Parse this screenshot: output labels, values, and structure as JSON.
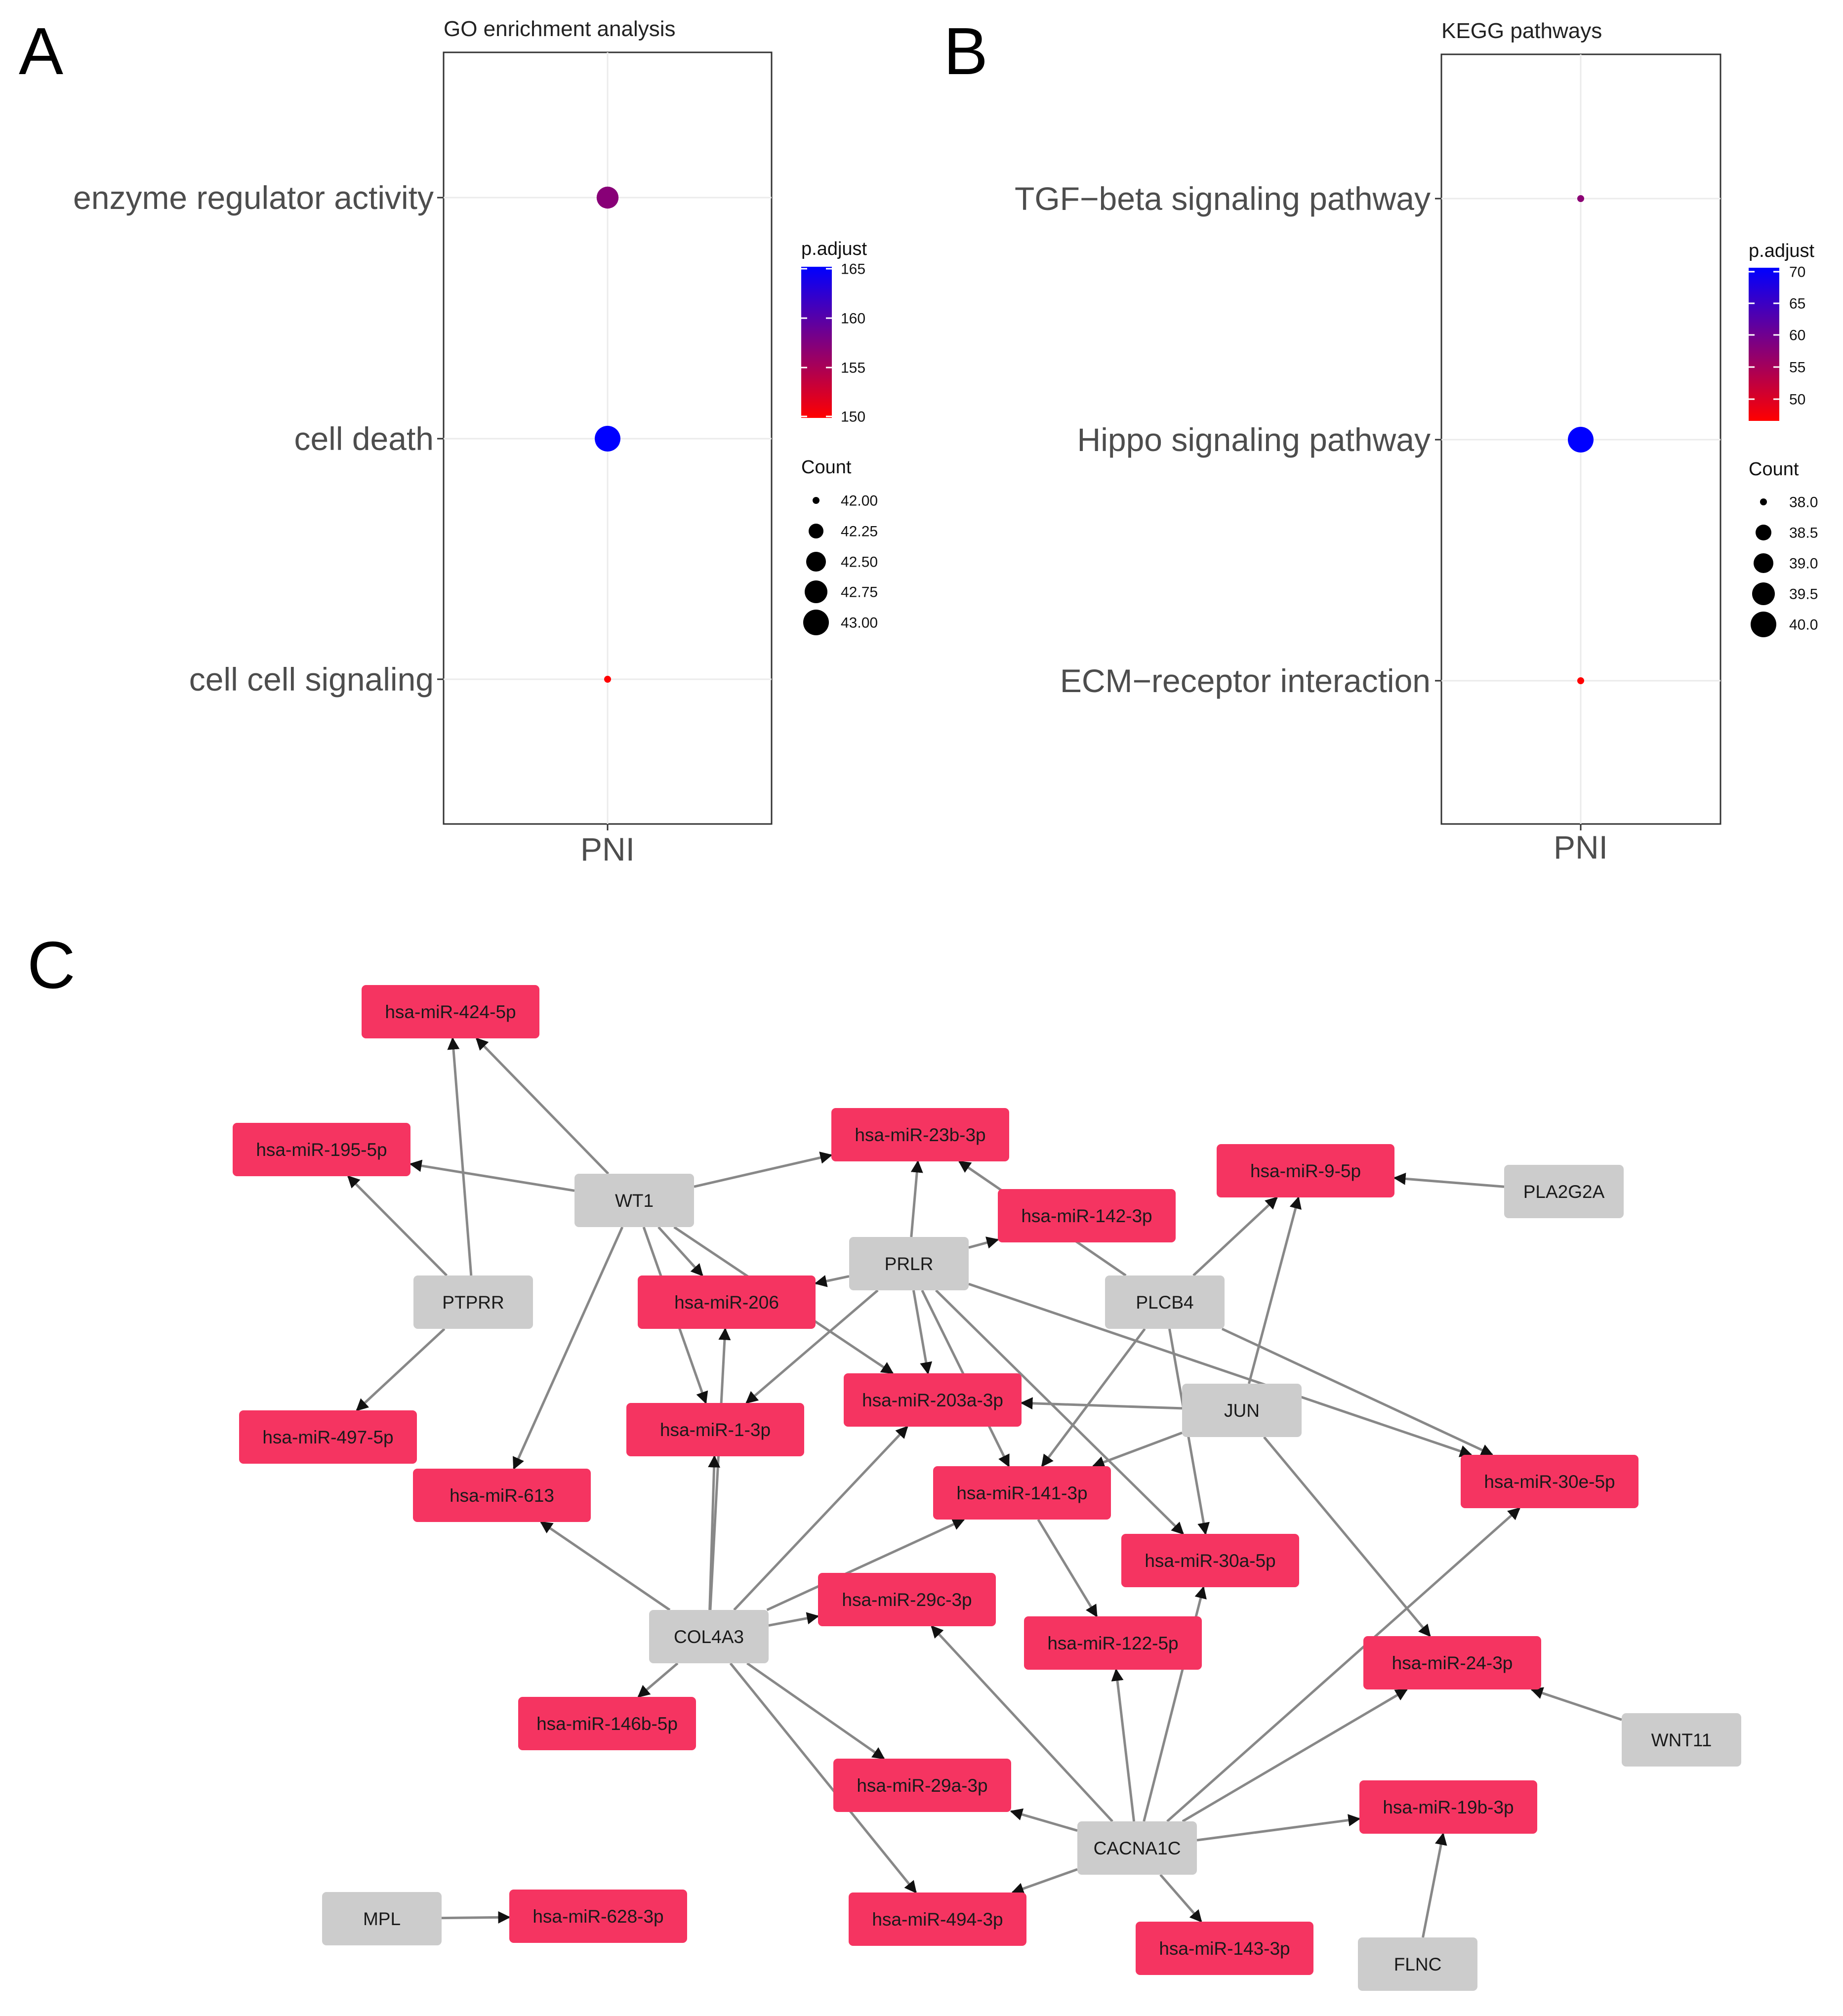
{
  "panels": {
    "A": {
      "letter": "A",
      "chart_data": {
        "type": "scatter",
        "title": "GO enrichment analysis",
        "x_categories": [
          "PNI"
        ],
        "y_categories": [
          "enzyme regulator activity",
          "cell death",
          "cell cell signaling"
        ],
        "points": [
          {
            "x": "PNI",
            "y": "enzyme regulator activity",
            "count": 42.8,
            "p_adjust": 157
          },
          {
            "x": "PNI",
            "y": "cell death",
            "count": 43.0,
            "p_adjust": 165
          },
          {
            "x": "PNI",
            "y": "cell cell signaling",
            "count": 42.0,
            "p_adjust": 150
          }
        ],
        "color_legend": {
          "title": "p.adjust",
          "range": [
            150,
            165
          ],
          "ticks": [
            "165",
            "160",
            "155",
            "150"
          ],
          "low_color": "#ff0000",
          "high_color": "#0000ff"
        },
        "size_legend": {
          "title": "Count",
          "ticks": [
            "42.00",
            "42.25",
            "42.50",
            "42.75",
            "43.00"
          ],
          "range": [
            42.0,
            43.0
          ]
        }
      }
    },
    "B": {
      "letter": "B",
      "chart_data": {
        "type": "scatter",
        "title": "KEGG pathways",
        "x_categories": [
          "PNI"
        ],
        "y_categories": [
          "TGF−beta signaling pathway",
          "Hippo signaling pathway",
          "ECM−receptor interaction"
        ],
        "points": [
          {
            "x": "PNI",
            "y": "TGF−beta signaling pathway",
            "count": 38.0,
            "p_adjust": 58
          },
          {
            "x": "PNI",
            "y": "Hippo signaling pathway",
            "count": 40.0,
            "p_adjust": 70
          },
          {
            "x": "PNI",
            "y": "ECM−receptor interaction",
            "count": 38.0,
            "p_adjust": 48
          }
        ],
        "color_legend": {
          "title": "p.adjust",
          "range": [
            48,
            70
          ],
          "ticks": [
            "70",
            "65",
            "60",
            "55",
            "50"
          ],
          "low_color": "#ff0000",
          "high_color": "#0000ff"
        },
        "size_legend": {
          "title": "Count",
          "ticks": [
            "38.0",
            "38.5",
            "39.0",
            "39.5",
            "40.0"
          ],
          "range": [
            38.0,
            40.0
          ]
        }
      }
    },
    "C": {
      "letter": "C",
      "network": {
        "gene_color": "#cccccc",
        "mirna_color": "#f53461",
        "edge_color": "#888888",
        "genes": [
          "WT1",
          "PTPRR",
          "PRLR",
          "PLCB4",
          "PLA2G2A",
          "JUN",
          "COL4A3",
          "WNT11",
          "CACNA1C",
          "MPL",
          "FLNC"
        ],
        "mirnas": [
          "hsa-miR-424-5p",
          "hsa-miR-195-5p",
          "hsa-miR-23b-3p",
          "hsa-miR-142-3p",
          "hsa-miR-9-5p",
          "hsa-miR-206",
          "hsa-miR-497-5p",
          "hsa-miR-1-3p",
          "hsa-miR-203a-3p",
          "hsa-miR-613",
          "hsa-miR-141-3p",
          "hsa-miR-30e-5p",
          "hsa-miR-30a-5p",
          "hsa-miR-29c-3p",
          "hsa-miR-122-5p",
          "hsa-miR-24-3p",
          "hsa-miR-146b-5p",
          "hsa-miR-29a-3p",
          "hsa-miR-19b-3p",
          "hsa-miR-628-3p",
          "hsa-miR-494-3p",
          "hsa-miR-143-3p"
        ],
        "edges": [
          [
            "WT1",
            "hsa-miR-424-5p"
          ],
          [
            "WT1",
            "hsa-miR-195-5p"
          ],
          [
            "WT1",
            "hsa-miR-23b-3p"
          ],
          [
            "WT1",
            "hsa-miR-206"
          ],
          [
            "WT1",
            "hsa-miR-1-3p"
          ],
          [
            "WT1",
            "hsa-miR-613"
          ],
          [
            "WT1",
            "hsa-miR-203a-3p"
          ],
          [
            "PTPRR",
            "hsa-miR-424-5p"
          ],
          [
            "PTPRR",
            "hsa-miR-195-5p"
          ],
          [
            "PTPRR",
            "hsa-miR-497-5p"
          ],
          [
            "PRLR",
            "hsa-miR-23b-3p"
          ],
          [
            "PRLR",
            "hsa-miR-142-3p"
          ],
          [
            "PRLR",
            "hsa-miR-206"
          ],
          [
            "PRLR",
            "hsa-miR-1-3p"
          ],
          [
            "PRLR",
            "hsa-miR-203a-3p"
          ],
          [
            "PRLR",
            "hsa-miR-141-3p"
          ],
          [
            "PRLR",
            "hsa-miR-30a-5p"
          ],
          [
            "PRLR",
            "hsa-miR-30e-5p"
          ],
          [
            "PLCB4",
            "hsa-miR-9-5p"
          ],
          [
            "PLCB4",
            "hsa-miR-23b-3p"
          ],
          [
            "PLCB4",
            "hsa-miR-141-3p"
          ],
          [
            "PLCB4",
            "hsa-miR-30a-5p"
          ],
          [
            "PLCB4",
            "hsa-miR-30e-5p"
          ],
          [
            "PLA2G2A",
            "hsa-miR-9-5p"
          ],
          [
            "JUN",
            "hsa-miR-9-5p"
          ],
          [
            "JUN",
            "hsa-miR-203a-3p"
          ],
          [
            "JUN",
            "hsa-miR-141-3p"
          ],
          [
            "JUN",
            "hsa-miR-24-3p"
          ],
          [
            "COL4A3",
            "hsa-miR-206"
          ],
          [
            "COL4A3",
            "hsa-miR-1-3p"
          ],
          [
            "COL4A3",
            "hsa-miR-203a-3p"
          ],
          [
            "COL4A3",
            "hsa-miR-613"
          ],
          [
            "COL4A3",
            "hsa-miR-141-3p"
          ],
          [
            "COL4A3",
            "hsa-miR-29c-3p"
          ],
          [
            "COL4A3",
            "hsa-miR-146b-5p"
          ],
          [
            "COL4A3",
            "hsa-miR-29a-3p"
          ],
          [
            "COL4A3",
            "hsa-miR-494-3p"
          ],
          [
            "WNT11",
            "hsa-miR-24-3p"
          ],
          [
            "CACNA1C",
            "hsa-miR-29c-3p"
          ],
          [
            "CACNA1C",
            "hsa-miR-122-5p"
          ],
          [
            "CACNA1C",
            "hsa-miR-30a-5p"
          ],
          [
            "CACNA1C",
            "hsa-miR-24-3p"
          ],
          [
            "CACNA1C",
            "hsa-miR-30e-5p"
          ],
          [
            "CACNA1C",
            "hsa-miR-19b-3p"
          ],
          [
            "CACNA1C",
            "hsa-miR-29a-3p"
          ],
          [
            "CACNA1C",
            "hsa-miR-494-3p"
          ],
          [
            "CACNA1C",
            "hsa-miR-143-3p"
          ],
          [
            "MPL",
            "hsa-miR-628-3p"
          ],
          [
            "FLNC",
            "hsa-miR-19b-3p"
          ],
          [
            "hsa-miR-141-3p",
            "hsa-miR-122-5p"
          ]
        ]
      }
    }
  }
}
